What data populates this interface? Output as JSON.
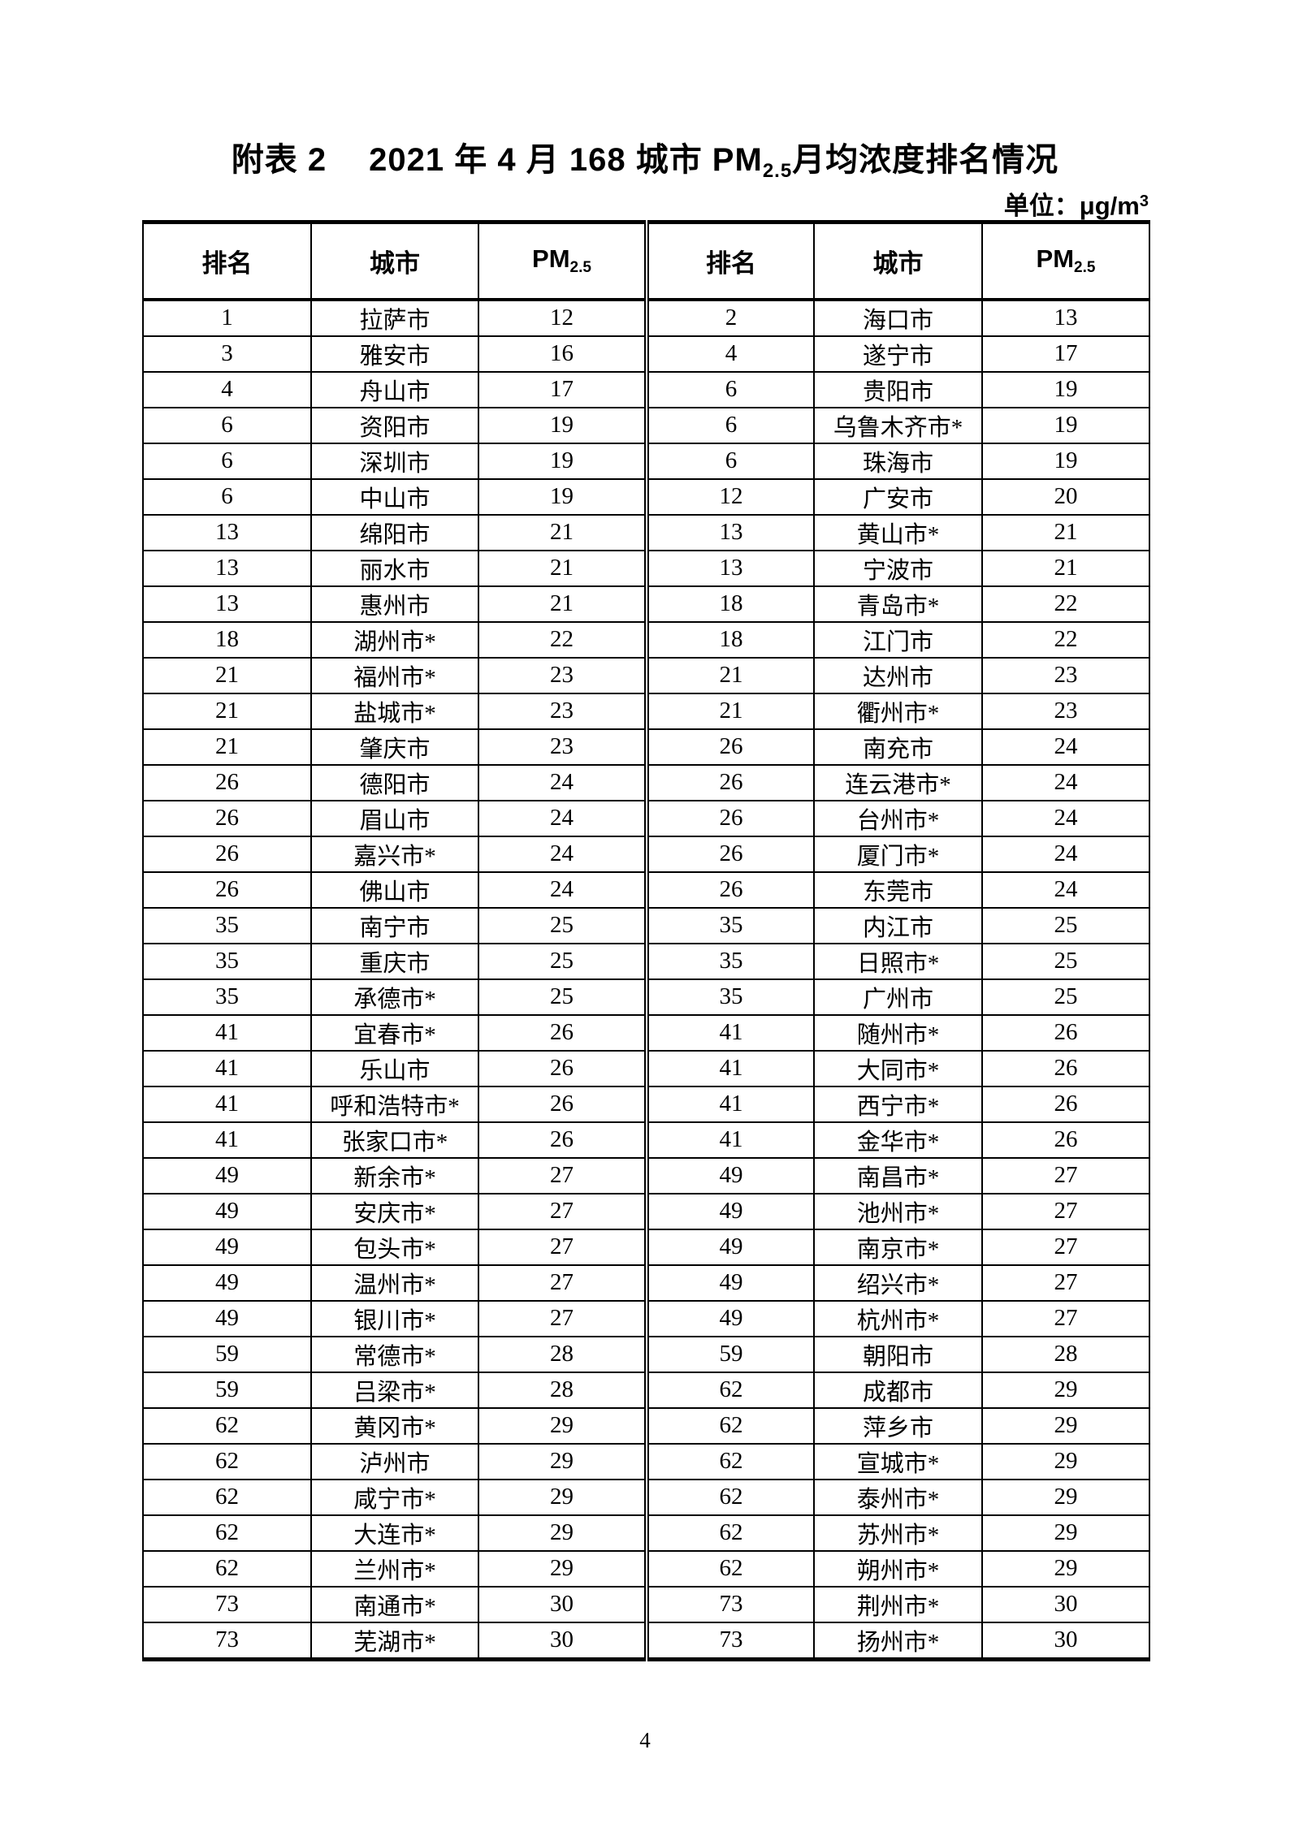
{
  "page": {
    "title": {
      "label": "附表 2",
      "main_before_sub": "2021 年 4 月 168 城市 PM",
      "sub": "2.5",
      "main_after_sub": "月均浓度排名情况"
    },
    "unit": {
      "prefix": "单位：μg/m",
      "sup": "3"
    },
    "page_number": "4"
  },
  "table": {
    "headers": {
      "rank": "排名",
      "city": "城市",
      "pm_label": "PM",
      "pm_sub": "2.5"
    },
    "rows": [
      [
        "1",
        "拉萨市",
        "12",
        "2",
        "海口市",
        "13"
      ],
      [
        "3",
        "雅安市",
        "16",
        "4",
        "遂宁市",
        "17"
      ],
      [
        "4",
        "舟山市",
        "17",
        "6",
        "贵阳市",
        "19"
      ],
      [
        "6",
        "资阳市",
        "19",
        "6",
        "乌鲁木齐市*",
        "19"
      ],
      [
        "6",
        "深圳市",
        "19",
        "6",
        "珠海市",
        "19"
      ],
      [
        "6",
        "中山市",
        "19",
        "12",
        "广安市",
        "20"
      ],
      [
        "13",
        "绵阳市",
        "21",
        "13",
        "黄山市*",
        "21"
      ],
      [
        "13",
        "丽水市",
        "21",
        "13",
        "宁波市",
        "21"
      ],
      [
        "13",
        "惠州市",
        "21",
        "18",
        "青岛市*",
        "22"
      ],
      [
        "18",
        "湖州市*",
        "22",
        "18",
        "江门市",
        "22"
      ],
      [
        "21",
        "福州市*",
        "23",
        "21",
        "达州市",
        "23"
      ],
      [
        "21",
        "盐城市*",
        "23",
        "21",
        "衢州市*",
        "23"
      ],
      [
        "21",
        "肇庆市",
        "23",
        "26",
        "南充市",
        "24"
      ],
      [
        "26",
        "德阳市",
        "24",
        "26",
        "连云港市*",
        "24"
      ],
      [
        "26",
        "眉山市",
        "24",
        "26",
        "台州市*",
        "24"
      ],
      [
        "26",
        "嘉兴市*",
        "24",
        "26",
        "厦门市*",
        "24"
      ],
      [
        "26",
        "佛山市",
        "24",
        "26",
        "东莞市",
        "24"
      ],
      [
        "35",
        "南宁市",
        "25",
        "35",
        "内江市",
        "25"
      ],
      [
        "35",
        "重庆市",
        "25",
        "35",
        "日照市*",
        "25"
      ],
      [
        "35",
        "承德市*",
        "25",
        "35",
        "广州市",
        "25"
      ],
      [
        "41",
        "宜春市*",
        "26",
        "41",
        "随州市*",
        "26"
      ],
      [
        "41",
        "乐山市",
        "26",
        "41",
        "大同市*",
        "26"
      ],
      [
        "41",
        "呼和浩特市*",
        "26",
        "41",
        "西宁市*",
        "26"
      ],
      [
        "41",
        "张家口市*",
        "26",
        "41",
        "金华市*",
        "26"
      ],
      [
        "49",
        "新余市*",
        "27",
        "49",
        "南昌市*",
        "27"
      ],
      [
        "49",
        "安庆市*",
        "27",
        "49",
        "池州市*",
        "27"
      ],
      [
        "49",
        "包头市*",
        "27",
        "49",
        "南京市*",
        "27"
      ],
      [
        "49",
        "温州市*",
        "27",
        "49",
        "绍兴市*",
        "27"
      ],
      [
        "49",
        "银川市*",
        "27",
        "49",
        "杭州市*",
        "27"
      ],
      [
        "59",
        "常德市*",
        "28",
        "59",
        "朝阳市",
        "28"
      ],
      [
        "59",
        "吕梁市*",
        "28",
        "62",
        "成都市",
        "29"
      ],
      [
        "62",
        "黄冈市*",
        "29",
        "62",
        "萍乡市",
        "29"
      ],
      [
        "62",
        "泸州市",
        "29",
        "62",
        "宣城市*",
        "29"
      ],
      [
        "62",
        "咸宁市*",
        "29",
        "62",
        "泰州市*",
        "29"
      ],
      [
        "62",
        "大连市*",
        "29",
        "62",
        "苏州市*",
        "29"
      ],
      [
        "62",
        "兰州市*",
        "29",
        "62",
        "朔州市*",
        "29"
      ],
      [
        "73",
        "南通市*",
        "30",
        "73",
        "荆州市*",
        "30"
      ],
      [
        "73",
        "芜湖市*",
        "30",
        "73",
        "扬州市*",
        "30"
      ]
    ]
  }
}
